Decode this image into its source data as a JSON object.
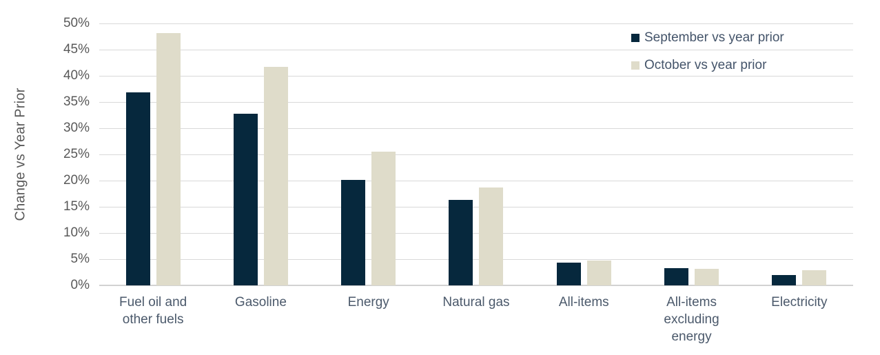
{
  "chart_data": {
    "type": "bar",
    "title": "",
    "ylabel": "Change vs Year Prior",
    "xlabel": "",
    "ylim": [
      0,
      50
    ],
    "ytick_step": 5,
    "ytick_suffix": "%",
    "grid": "horizontal",
    "grid_color": "#d9d9d9",
    "legend_position": "top-right",
    "categories": [
      "Fuel oil and other fuels",
      "Gasoline",
      "Energy",
      "Natural gas",
      "All-items",
      "All-items excluding energy",
      "Electricity"
    ],
    "series": [
      {
        "name": "September vs year prior",
        "color": "#06283d",
        "values": [
          36.8,
          32.8,
          20.1,
          16.3,
          4.4,
          3.3,
          2.0
        ]
      },
      {
        "name": "October vs year prior",
        "color": "#dfdcca",
        "values": [
          48.1,
          41.7,
          25.5,
          18.7,
          4.7,
          3.2,
          2.9
        ]
      }
    ]
  },
  "colors": {
    "axis_text": "#595959",
    "category_text": "#4b596b",
    "legend_text": "#44546a",
    "background": "#ffffff"
  }
}
